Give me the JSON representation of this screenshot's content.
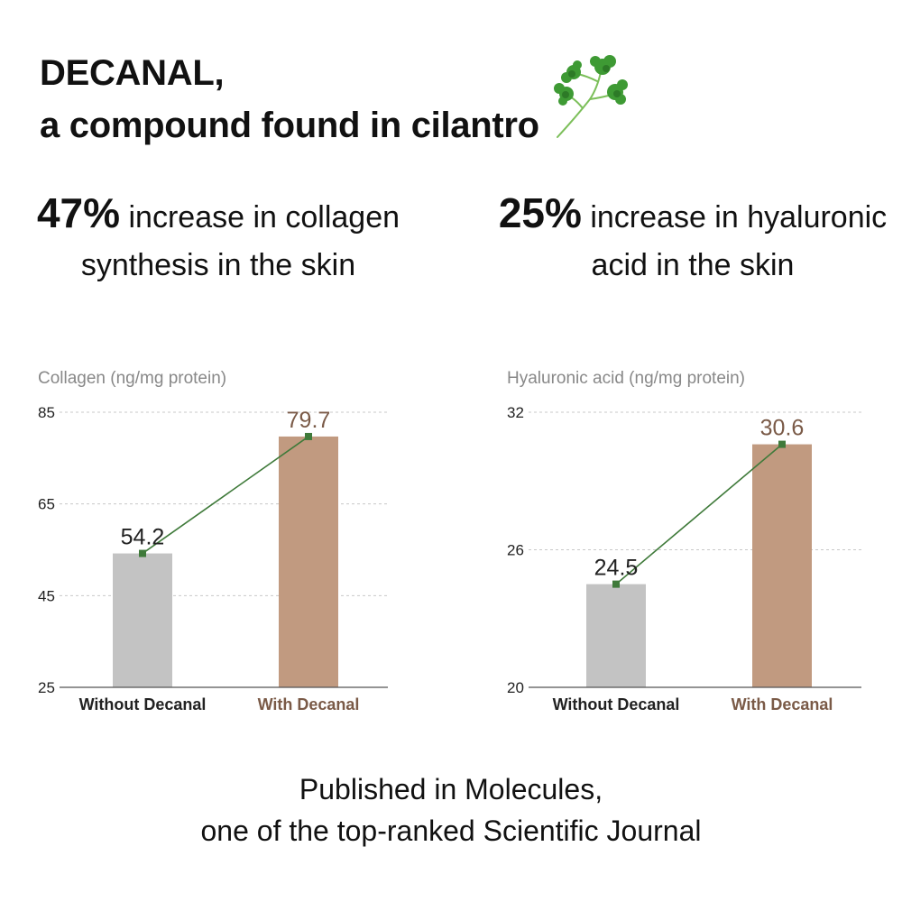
{
  "header": {
    "line1": "DECANAL,",
    "line2": "a compound found in cilantro"
  },
  "icons": {
    "header_decoration": "cilantro-icon"
  },
  "stats": [
    {
      "big": "47%",
      "text": " increase in collagen synthesis in the skin"
    },
    {
      "big": "25%",
      "text": " increase in hyaluronic acid in the skin"
    }
  ],
  "chart_data": [
    {
      "type": "bar",
      "ylabel": "Collagen (ng/mg protein)",
      "categories": [
        "Without Decanal",
        "With Decanal"
      ],
      "values": [
        54.2,
        79.7
      ],
      "value_labels": [
        "54.2",
        "79.7"
      ],
      "ylim": [
        25,
        85
      ],
      "yticks": [
        25,
        45,
        65,
        85
      ],
      "grid": true,
      "trend_line": true,
      "colors": {
        "without": "#c3c3c3",
        "with": "#c19a80",
        "trend": "#3f7a3a",
        "with_text": "#7a5a47"
      }
    },
    {
      "type": "bar",
      "ylabel": "Hyaluronic acid (ng/mg protein)",
      "categories": [
        "Without Decanal",
        "With Decanal"
      ],
      "values": [
        24.5,
        30.6
      ],
      "value_labels": [
        "24.5",
        "30.6"
      ],
      "ylim": [
        20,
        32
      ],
      "yticks": [
        20,
        26,
        32
      ],
      "grid": true,
      "trend_line": true,
      "colors": {
        "without": "#c3c3c3",
        "with": "#c19a80",
        "trend": "#3f7a3a",
        "with_text": "#7a5a47"
      }
    }
  ],
  "footer": {
    "line1": "Published in Molecules,",
    "line2": "one of the top-ranked Scientific Journal"
  }
}
